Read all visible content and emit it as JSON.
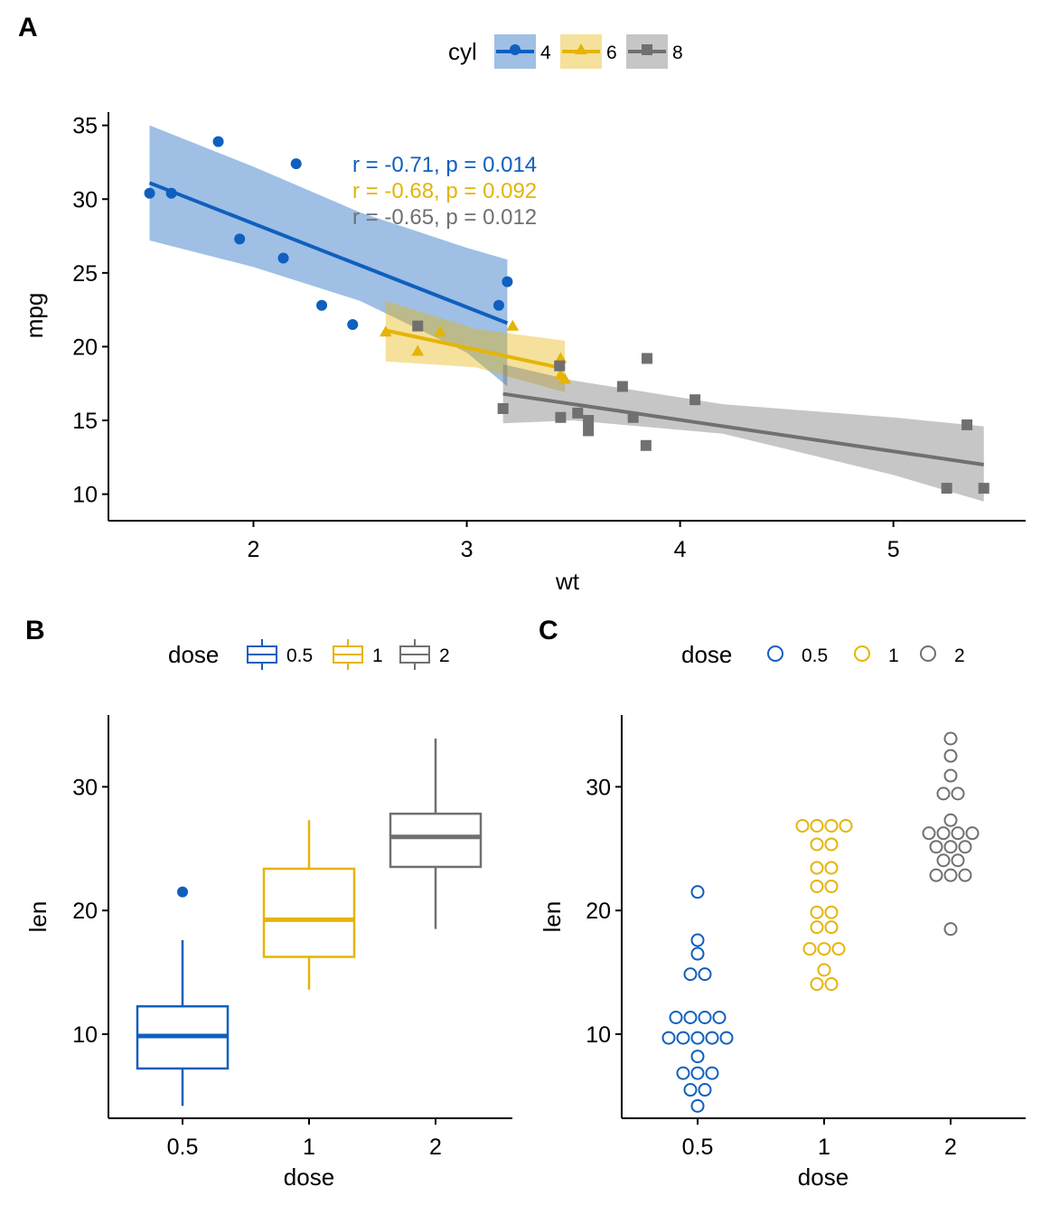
{
  "colors": {
    "blue": "#0F5FBF",
    "yellow": "#E5B406",
    "gray": "#707070"
  },
  "chart_data": [
    {
      "panel": "A",
      "type": "scatter",
      "xlabel": "wt",
      "ylabel": "mpg",
      "xlim": [
        1.32,
        5.62
      ],
      "ylim": [
        8.2,
        35.9
      ],
      "xticks": [
        2,
        3,
        4,
        5
      ],
      "yticks": [
        10,
        15,
        20,
        25,
        30,
        35
      ],
      "legend": {
        "title": "cyl",
        "position": "top"
      },
      "series": [
        {
          "name": "4",
          "color": "blue",
          "shape": "circle",
          "points": [
            [
              1.513,
              30.4
            ],
            [
              1.615,
              30.4
            ],
            [
              1.835,
              33.9
            ],
            [
              1.935,
              27.3
            ],
            [
              2.14,
              26.0
            ],
            [
              2.2,
              32.4
            ],
            [
              2.32,
              22.8
            ],
            [
              2.465,
              21.5
            ],
            [
              3.15,
              22.8
            ],
            [
              3.19,
              24.4
            ]
          ],
          "fit": {
            "x": [
              1.513,
              3.19
            ],
            "y": [
              31.1,
              21.6
            ]
          },
          "band": {
            "x": [
              1.513,
              2.0,
              2.5,
              3.0,
              3.19
            ],
            "lower": [
              27.2,
              25.4,
              23.1,
              19.6,
              17.3
            ],
            "upper": [
              35.0,
              32.2,
              29.1,
              26.7,
              25.9
            ]
          },
          "annotation": "r = -0.71, p = 0.014"
        },
        {
          "name": "6",
          "color": "yellow",
          "shape": "triangle",
          "points": [
            [
              2.62,
              21.0
            ],
            [
              2.77,
              19.7
            ],
            [
              2.875,
              21.0
            ],
            [
              3.215,
              21.4
            ],
            [
              3.44,
              18.1
            ],
            [
              3.44,
              19.2
            ],
            [
              3.46,
              17.8
            ]
          ],
          "fit": {
            "x": [
              2.62,
              3.46
            ],
            "y": [
              21.1,
              18.5
            ]
          },
          "band": {
            "x": [
              2.62,
              3.04,
              3.46
            ],
            "lower": [
              19.0,
              18.6,
              16.9
            ],
            "upper": [
              23.1,
              21.2,
              20.4
            ]
          },
          "annotation": "r = -0.68, p = 0.092"
        },
        {
          "name": "8",
          "color": "gray",
          "shape": "square",
          "points": [
            [
              2.77,
              21.4
            ],
            [
              3.17,
              15.8
            ],
            [
              3.435,
              18.7
            ],
            [
              3.44,
              15.2
            ],
            [
              3.52,
              15.5
            ],
            [
              3.57,
              14.3
            ],
            [
              3.57,
              15.0
            ],
            [
              3.73,
              17.3
            ],
            [
              3.78,
              15.2
            ],
            [
              3.84,
              13.3
            ],
            [
              3.845,
              19.2
            ],
            [
              4.07,
              16.4
            ],
            [
              5.25,
              10.4
            ],
            [
              5.345,
              14.7
            ],
            [
              5.424,
              10.4
            ]
          ],
          "fit": {
            "x": [
              3.17,
              5.424
            ],
            "y": [
              16.8,
              12.0
            ]
          },
          "band": {
            "x": [
              3.17,
              3.5,
              4.2,
              5.0,
              5.424
            ],
            "lower": [
              14.8,
              15.0,
              14.1,
              11.3,
              9.5
            ],
            "upper": [
              18.8,
              17.7,
              16.1,
              15.2,
              14.6
            ]
          },
          "annotation": "r = -0.65, p = 0.012"
        }
      ]
    },
    {
      "panel": "B",
      "type": "box",
      "xlabel": "dose",
      "ylabel": "len",
      "categories": [
        "0.5",
        "1",
        "2"
      ],
      "ylim": [
        3.2,
        35.8
      ],
      "yticks": [
        10,
        20,
        30
      ],
      "legend": {
        "title": "dose",
        "position": "top"
      },
      "boxes": [
        {
          "name": "0.5",
          "color": "blue",
          "min": 4.2,
          "q1": 7.225,
          "median": 9.85,
          "q3": 12.25,
          "max": 17.6,
          "outliers": [
            21.5
          ]
        },
        {
          "name": "1",
          "color": "yellow",
          "min": 13.6,
          "q1": 16.25,
          "median": 19.25,
          "q3": 23.375,
          "max": 27.3,
          "outliers": []
        },
        {
          "name": "2",
          "color": "gray",
          "min": 18.5,
          "q1": 23.525,
          "median": 25.95,
          "q3": 27.825,
          "max": 33.9,
          "outliers": []
        }
      ]
    },
    {
      "panel": "C",
      "type": "dotplot",
      "xlabel": "dose",
      "ylabel": "len",
      "categories": [
        "0.5",
        "1",
        "2"
      ],
      "ylim": [
        3.2,
        35.8
      ],
      "yticks": [
        10,
        20,
        30
      ],
      "legend": {
        "title": "dose",
        "position": "top"
      },
      "groups": [
        {
          "name": "0.5",
          "color": "blue",
          "values": [
            4.2,
            5.2,
            5.8,
            6.4,
            7.0,
            7.3,
            8.2,
            9.4,
            9.7,
            9.7,
            10.0,
            10.0,
            11.2,
            11.2,
            11.5,
            11.5,
            14.5,
            15.2,
            16.5,
            17.6,
            21.5
          ]
        },
        {
          "name": "1",
          "color": "yellow",
          "values": [
            13.6,
            14.5,
            15.2,
            16.5,
            16.5,
            17.3,
            18.5,
            18.8,
            19.7,
            20.0,
            21.5,
            22.4,
            23.3,
            23.6,
            25.2,
            25.5,
            26.4,
            26.4,
            27.3,
            27.3
          ]
        },
        {
          "name": "2",
          "color": "gray",
          "values": [
            18.5,
            22.4,
            23.0,
            23.3,
            23.6,
            24.5,
            24.8,
            25.5,
            25.5,
            25.8,
            26.4,
            26.4,
            26.7,
            27.3,
            29.4,
            29.5,
            30.9,
            32.5,
            33.9
          ]
        }
      ]
    }
  ]
}
